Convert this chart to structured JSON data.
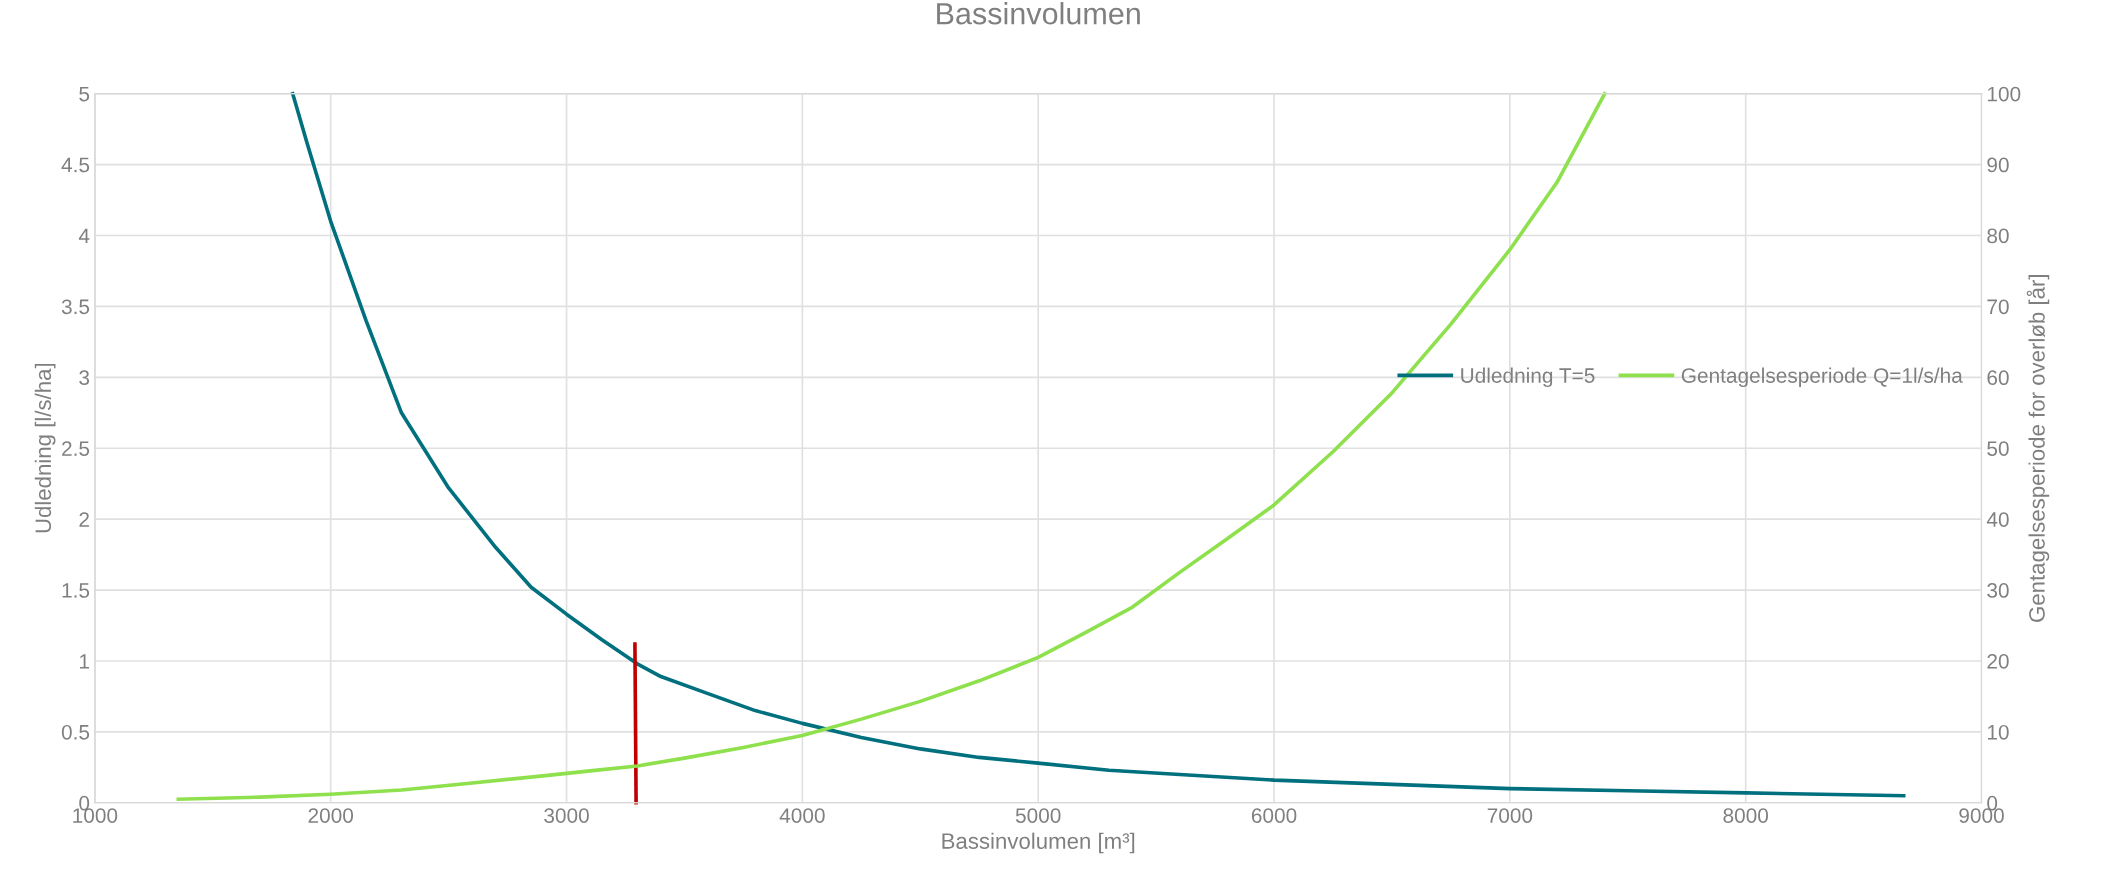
{
  "chart_data": {
    "type": "line",
    "title": "Bassinvolumen",
    "xlabel": "Bassinvolumen [m³]",
    "ylabel": "Udledning [l/s/ha]",
    "y2label": "Gentagelsesperiode for overløb [år]",
    "xlim": [
      1000,
      9000
    ],
    "xticks": [
      1000,
      2000,
      3000,
      4000,
      5000,
      6000,
      7000,
      8000,
      9000
    ],
    "ylim": [
      0,
      5
    ],
    "yticks": [
      0,
      0.5,
      1,
      1.5,
      2,
      2.5,
      3,
      3.5,
      4,
      4.5,
      5
    ],
    "y2lim": [
      0,
      100
    ],
    "y2ticks": [
      0,
      10,
      20,
      30,
      40,
      50,
      60,
      70,
      80,
      90,
      100
    ],
    "grid": true,
    "legend": "right",
    "series": [
      {
        "name": "Udledning T=5",
        "color": "#00707f",
        "x": [
          1839,
          1900,
          2000,
          2150,
          2300,
          2500,
          2700,
          2850,
          3000,
          3150,
          3300,
          3400,
          3600,
          3800,
          4000,
          4250,
          4500,
          4750,
          5000,
          5300,
          5600,
          6000,
          6500,
          7000,
          7500,
          8000,
          8670
        ],
        "values": [
          5,
          4.65,
          4.1,
          3.4,
          2.75,
          2.22,
          1.8,
          1.52,
          1.33,
          1.15,
          0.98,
          0.89,
          0.77,
          0.65,
          0.56,
          0.46,
          0.38,
          0.32,
          0.28,
          0.23,
          0.2,
          0.16,
          0.13,
          0.1,
          0.085,
          0.07,
          0.05
        ]
      },
      {
        "name": "Gentagelsesperiode Q=1l/s/ha",
        "color": "#8ee04c",
        "axis": "y2",
        "x": [
          1354,
          1700,
          2000,
          2300,
          2600,
          2900,
          3100,
          3300,
          3500,
          3750,
          4000,
          4250,
          4500,
          4750,
          5000,
          5200,
          5400,
          5600,
          5800,
          6000,
          6250,
          6500,
          6750,
          7000,
          7200,
          7402
        ],
        "values": [
          0.5,
          0.8,
          1.2,
          1.8,
          2.8,
          3.8,
          4.5,
          5.2,
          6.3,
          7.8,
          9.5,
          11.8,
          14.3,
          17.2,
          20.5,
          24,
          27.6,
          32.5,
          37.2,
          42,
          49.5,
          57.8,
          67.5,
          78,
          87.5,
          100
        ]
      },
      {
        "color": "#c00000",
        "x": [
          3290,
          3295
        ],
        "values": [
          1.12,
          0
        ]
      }
    ]
  }
}
